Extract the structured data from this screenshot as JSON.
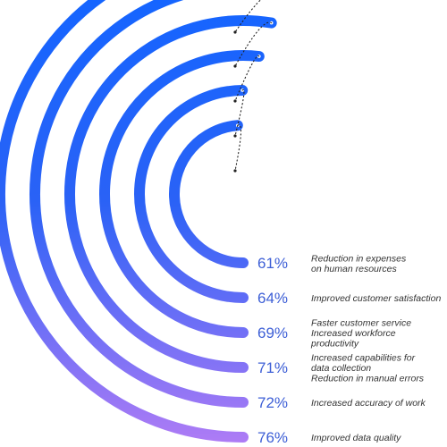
{
  "colors": {
    "start": "#1565ff",
    "end": "#b07cf5",
    "dots": "#222222",
    "value_text": "#3d5fd6",
    "label_text": "#333333"
  },
  "chart_data": {
    "type": "radial-bar",
    "unit": "%",
    "series": [
      {
        "value": 61,
        "value_label": "61%",
        "label_lines": [
          "Reduction in expenses",
          "on human resources"
        ]
      },
      {
        "value": 64,
        "value_label": "64%",
        "label_lines": [
          "Improved customer satisfaction"
        ]
      },
      {
        "value": 69,
        "value_label": "69%",
        "label_lines": [
          "Faster customer service",
          "Increased workforce",
          "productivity"
        ]
      },
      {
        "value": 71,
        "value_label": "71%",
        "label_lines": [
          "Increased capabilities for",
          "data collection",
          "Reduction in manual errors"
        ]
      },
      {
        "value": 72,
        "value_label": "72%",
        "label_lines": [
          "Increased accuracy of work"
        ]
      },
      {
        "value": 76,
        "value_label": "76%",
        "label_lines": [
          "Improved data quality"
        ]
      }
    ]
  }
}
